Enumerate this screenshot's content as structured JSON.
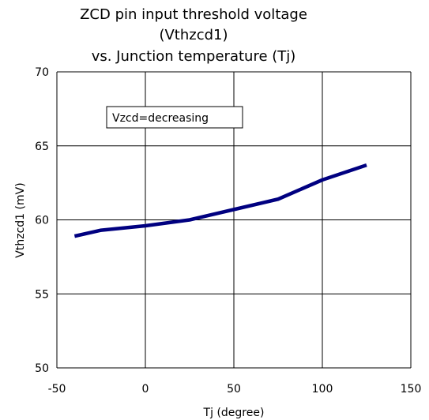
{
  "chart_data": {
    "type": "line",
    "title_lines": [
      "ZCD pin input threshold voltage",
      "(Vthzcd1)",
      "vs. Junction temperature (Tj)"
    ],
    "xlabel": "Tj (degree)",
    "ylabel": "Vthzcd1 (mV)",
    "xlim": [
      -50,
      150
    ],
    "ylim": [
      50,
      70
    ],
    "xticks": [
      -50,
      0,
      50,
      100,
      150
    ],
    "yticks": [
      50,
      55,
      60,
      65,
      70
    ],
    "grid": true,
    "annotation": "Vzcd=decreasing",
    "series": [
      {
        "color": "#000080",
        "x": [
          -40,
          -25,
          0,
          25,
          50,
          75,
          100,
          125
        ],
        "y": [
          58.9,
          59.3,
          59.6,
          60.0,
          60.7,
          61.4,
          62.7,
          63.7
        ]
      }
    ]
  }
}
